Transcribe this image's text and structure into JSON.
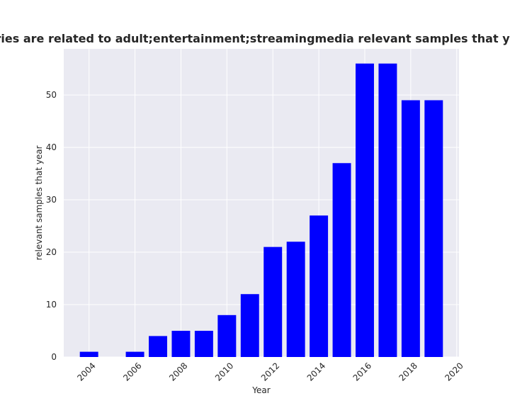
{
  "chart_data": {
    "type": "bar",
    "title": "Number of repositories are related to adult;entertainment;streamingmedia relevant samples that year in privacy policy",
    "xlabel": "Year",
    "ylabel": "relevant samples that year",
    "x": [
      2004,
      2006,
      2007,
      2008,
      2009,
      2010,
      2011,
      2012,
      2013,
      2014,
      2015,
      2016,
      2017,
      2018,
      2019
    ],
    "values": [
      1,
      1,
      4,
      5,
      5,
      8,
      12,
      21,
      22,
      27,
      37,
      56,
      56,
      49,
      49
    ],
    "xlim": [
      2002.9,
      2020.1
    ],
    "ylim": [
      0,
      58.8
    ],
    "xticks": [
      "2004",
      "2006",
      "2008",
      "2010",
      "2012",
      "2014",
      "2016",
      "2018",
      "2020"
    ],
    "yticks": [
      "0",
      "10",
      "20",
      "30",
      "40",
      "50"
    ],
    "grid": true,
    "colors": {
      "bar": "#0000ff",
      "plot_background": "#eaeaf2",
      "grid": "#ffffff",
      "text": "#262626"
    }
  }
}
